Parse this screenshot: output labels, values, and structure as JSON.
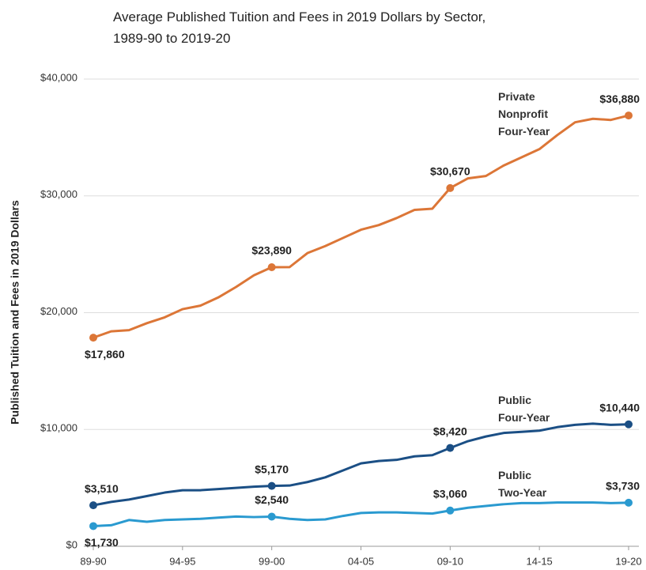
{
  "chart_data": {
    "type": "line",
    "title": "Average Published Tuition and Fees in 2019 Dollars by Sector, 1989-90 to 2019-20",
    "y_label": "Published Tuition and Fees in 2019 Dollars",
    "categories": [
      "89-90",
      null,
      null,
      null,
      null,
      "94-95",
      null,
      null,
      null,
      null,
      "99-00",
      null,
      null,
      null,
      null,
      "04-05",
      null,
      null,
      null,
      null,
      "09-10",
      null,
      null,
      null,
      null,
      "14-15",
      null,
      null,
      null,
      null,
      "19-20"
    ],
    "ylim": [
      0,
      40000
    ],
    "yticks": [
      {
        "value": 0,
        "label": "$0"
      },
      {
        "value": 10000,
        "label": "$10,000"
      },
      {
        "value": 20000,
        "label": "$20,000"
      },
      {
        "value": 30000,
        "label": "$30,000"
      },
      {
        "value": 40000,
        "label": "$40,000"
      }
    ],
    "grid": true,
    "series": [
      {
        "name": "Private Nonprofit Four-Year",
        "color": "#dc7637",
        "values": [
          17860,
          18400,
          18500,
          19100,
          19600,
          20300,
          20600,
          21300,
          22200,
          23200,
          23890,
          23900,
          25100,
          25700,
          26400,
          27100,
          27500,
          28100,
          28800,
          28900,
          30670,
          31500,
          31700,
          32600,
          33300,
          34000,
          35200,
          36300,
          36600,
          36500,
          36880
        ],
        "value_labels": [
          "$17,860",
          null,
          null,
          null,
          null,
          null,
          null,
          null,
          null,
          null,
          "$23,890",
          null,
          null,
          null,
          null,
          null,
          null,
          null,
          null,
          null,
          "$30,670",
          null,
          null,
          null,
          null,
          null,
          null,
          null,
          null,
          null,
          "$36,880"
        ]
      },
      {
        "name": "Public Four-Year",
        "color": "#1b4f85",
        "values": [
          3510,
          3800,
          4000,
          4300,
          4600,
          4800,
          4800,
          4900,
          5000,
          5100,
          5170,
          5200,
          5500,
          5900,
          6500,
          7100,
          7300,
          7400,
          7700,
          7800,
          8420,
          9000,
          9400,
          9700,
          9800,
          9900,
          10200,
          10400,
          10500,
          10400,
          10440
        ],
        "value_labels": [
          "$3,510",
          null,
          null,
          null,
          null,
          null,
          null,
          null,
          null,
          null,
          "$5,170",
          null,
          null,
          null,
          null,
          null,
          null,
          null,
          null,
          null,
          "$8,420",
          null,
          null,
          null,
          null,
          null,
          null,
          null,
          null,
          null,
          "$10,440"
        ]
      },
      {
        "name": "Public Two-Year",
        "color": "#2a9ad0",
        "values": [
          1730,
          1800,
          2250,
          2100,
          2250,
          2300,
          2350,
          2450,
          2550,
          2500,
          2540,
          2350,
          2250,
          2300,
          2600,
          2850,
          2900,
          2900,
          2850,
          2800,
          3060,
          3300,
          3450,
          3600,
          3700,
          3700,
          3750,
          3750,
          3750,
          3700,
          3730
        ],
        "value_labels": [
          "$1,730",
          null,
          null,
          null,
          null,
          null,
          null,
          null,
          null,
          null,
          "$2,540",
          null,
          null,
          null,
          null,
          null,
          null,
          null,
          null,
          null,
          "$3,060",
          null,
          null,
          null,
          null,
          null,
          null,
          null,
          null,
          null,
          "$3,730"
        ]
      }
    ]
  }
}
